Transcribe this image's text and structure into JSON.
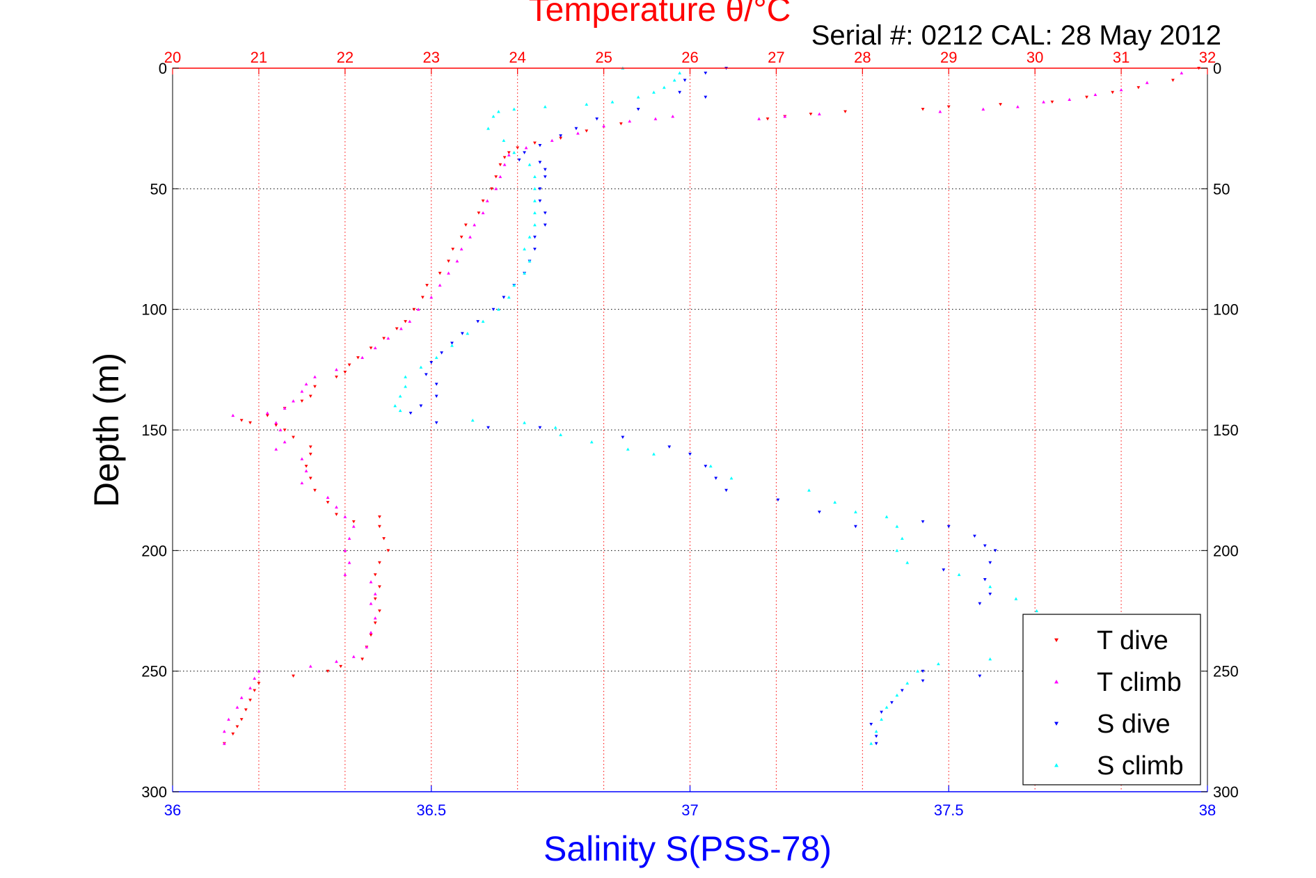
{
  "chart_data": {
    "type": "scatter",
    "title": "Temperature θ/°C",
    "subtitle": "Serial #: 0212  CAL: 28 May 2012",
    "ylabel": "Depth (m)",
    "xlabel_bottom": "Salinity S(PSS-78)",
    "x_top_axis": {
      "label": "Temperature θ/°C",
      "range": [
        20,
        32
      ],
      "ticks": [
        20,
        21,
        22,
        23,
        24,
        25,
        26,
        27,
        28,
        29,
        30,
        31,
        32
      ],
      "color": "#ff0000"
    },
    "x_bottom_axis": {
      "label": "Salinity S(PSS-78)",
      "range": [
        36,
        38
      ],
      "ticks": [
        "36",
        "36.5",
        "37",
        "37.5",
        "38"
      ],
      "tick_values": [
        36,
        36.5,
        37,
        37.5,
        38
      ],
      "color": "#0000ff"
    },
    "y_axis": {
      "label": "Depth (m)",
      "range": [
        0,
        300
      ],
      "reversed": true,
      "ticks": [
        0,
        50,
        100,
        150,
        200,
        250,
        300
      ]
    },
    "grid": true,
    "legend_position": "bottom-right",
    "series": [
      {
        "name": "T dive",
        "axis": "temperature",
        "color": "#ff0000",
        "marker": "triangle-down",
        "points": [
          [
            31.9,
            0
          ],
          [
            31.6,
            5
          ],
          [
            31.2,
            8
          ],
          [
            30.9,
            10
          ],
          [
            30.6,
            12
          ],
          [
            30.2,
            14
          ],
          [
            29.6,
            15
          ],
          [
            29.0,
            16
          ],
          [
            28.7,
            17
          ],
          [
            27.8,
            18
          ],
          [
            27.4,
            19
          ],
          [
            27.1,
            20
          ],
          [
            26.9,
            21
          ],
          [
            25.2,
            23
          ],
          [
            24.8,
            26
          ],
          [
            24.5,
            29
          ],
          [
            24.2,
            31
          ],
          [
            24.0,
            33
          ],
          [
            23.9,
            35
          ],
          [
            23.85,
            37
          ],
          [
            23.8,
            40
          ],
          [
            23.75,
            45
          ],
          [
            23.7,
            50
          ],
          [
            23.6,
            55
          ],
          [
            23.55,
            60
          ],
          [
            23.4,
            65
          ],
          [
            23.35,
            70
          ],
          [
            23.25,
            75
          ],
          [
            23.2,
            80
          ],
          [
            23.1,
            85
          ],
          [
            22.95,
            90
          ],
          [
            22.9,
            95
          ],
          [
            22.8,
            100
          ],
          [
            22.7,
            105
          ],
          [
            22.6,
            108
          ],
          [
            22.45,
            112
          ],
          [
            22.3,
            116
          ],
          [
            22.15,
            120
          ],
          [
            22.05,
            123
          ],
          [
            22.0,
            126
          ],
          [
            21.9,
            128
          ],
          [
            21.65,
            132
          ],
          [
            21.6,
            136
          ],
          [
            21.5,
            138
          ],
          [
            21.3,
            141
          ],
          [
            21.1,
            144
          ],
          [
            20.8,
            146
          ],
          [
            20.9,
            147
          ],
          [
            21.2,
            148
          ],
          [
            21.3,
            150
          ],
          [
            21.4,
            153
          ],
          [
            21.6,
            157
          ],
          [
            21.6,
            160
          ],
          [
            21.55,
            165
          ],
          [
            21.6,
            170
          ],
          [
            21.65,
            175
          ],
          [
            21.8,
            180
          ],
          [
            21.9,
            185
          ],
          [
            22.1,
            188
          ],
          [
            22.4,
            186
          ],
          [
            22.4,
            190
          ],
          [
            22.45,
            195
          ],
          [
            22.5,
            200
          ],
          [
            22.4,
            205
          ],
          [
            22.35,
            210
          ],
          [
            22.4,
            215
          ],
          [
            22.35,
            220
          ],
          [
            22.4,
            225
          ],
          [
            22.35,
            230
          ],
          [
            22.3,
            235
          ],
          [
            22.25,
            240
          ],
          [
            22.2,
            245
          ],
          [
            21.95,
            248
          ],
          [
            21.8,
            250
          ],
          [
            21.4,
            252
          ],
          [
            21.0,
            255
          ],
          [
            20.95,
            258
          ],
          [
            20.9,
            262
          ],
          [
            20.85,
            266
          ],
          [
            20.8,
            270
          ],
          [
            20.75,
            273
          ],
          [
            20.7,
            276
          ],
          [
            20.6,
            280
          ]
        ]
      },
      {
        "name": "T climb",
        "axis": "temperature",
        "color": "#ff00ff",
        "marker": "triangle-up",
        "points": [
          [
            31.7,
            2
          ],
          [
            31.3,
            6
          ],
          [
            31.0,
            9
          ],
          [
            30.7,
            11
          ],
          [
            30.4,
            13
          ],
          [
            30.1,
            14
          ],
          [
            29.8,
            16
          ],
          [
            29.4,
            17
          ],
          [
            28.9,
            18
          ],
          [
            27.5,
            19
          ],
          [
            27.1,
            20
          ],
          [
            26.8,
            21
          ],
          [
            25.8,
            20
          ],
          [
            25.6,
            21
          ],
          [
            25.3,
            22
          ],
          [
            25.0,
            24
          ],
          [
            24.7,
            27
          ],
          [
            24.4,
            30
          ],
          [
            24.1,
            33
          ],
          [
            23.9,
            36
          ],
          [
            23.85,
            40
          ],
          [
            23.8,
            45
          ],
          [
            23.75,
            50
          ],
          [
            23.65,
            55
          ],
          [
            23.6,
            60
          ],
          [
            23.5,
            65
          ],
          [
            23.45,
            70
          ],
          [
            23.35,
            75
          ],
          [
            23.3,
            80
          ],
          [
            23.2,
            85
          ],
          [
            23.1,
            90
          ],
          [
            23.0,
            95
          ],
          [
            22.85,
            100
          ],
          [
            22.75,
            105
          ],
          [
            22.65,
            108
          ],
          [
            22.5,
            112
          ],
          [
            22.35,
            116
          ],
          [
            22.2,
            120
          ],
          [
            21.9,
            125
          ],
          [
            21.65,
            128
          ],
          [
            21.55,
            131
          ],
          [
            21.5,
            134
          ],
          [
            21.4,
            138
          ],
          [
            21.3,
            141
          ],
          [
            21.1,
            143
          ],
          [
            20.7,
            144
          ],
          [
            21.2,
            147
          ],
          [
            21.25,
            150
          ],
          [
            21.3,
            155
          ],
          [
            21.2,
            158
          ],
          [
            21.5,
            162
          ],
          [
            21.55,
            167
          ],
          [
            21.5,
            172
          ],
          [
            21.8,
            178
          ],
          [
            21.9,
            182
          ],
          [
            22.0,
            186
          ],
          [
            22.1,
            190
          ],
          [
            22.05,
            195
          ],
          [
            22.0,
            200
          ],
          [
            22.05,
            205
          ],
          [
            22.0,
            210
          ],
          [
            22.3,
            213
          ],
          [
            22.35,
            218
          ],
          [
            22.3,
            222
          ],
          [
            22.35,
            228
          ],
          [
            22.3,
            234
          ],
          [
            22.25,
            240
          ],
          [
            22.1,
            244
          ],
          [
            21.9,
            246
          ],
          [
            21.6,
            248
          ],
          [
            21.0,
            250
          ],
          [
            20.95,
            253
          ],
          [
            20.9,
            257
          ],
          [
            20.8,
            261
          ],
          [
            20.75,
            265
          ],
          [
            20.65,
            270
          ],
          [
            20.6,
            275
          ],
          [
            20.6,
            280
          ]
        ]
      },
      {
        "name": "S dive",
        "axis": "salinity",
        "color": "#0000ff",
        "marker": "triangle-down",
        "points": [
          [
            37.07,
            0
          ],
          [
            37.03,
            2
          ],
          [
            36.99,
            5
          ],
          [
            36.98,
            10
          ],
          [
            37.03,
            12
          ],
          [
            36.9,
            17
          ],
          [
            36.82,
            21
          ],
          [
            36.78,
            25
          ],
          [
            36.75,
            28
          ],
          [
            36.71,
            32
          ],
          [
            36.68,
            35
          ],
          [
            36.67,
            38
          ],
          [
            36.71,
            39
          ],
          [
            36.72,
            42
          ],
          [
            36.72,
            45
          ],
          [
            36.71,
            50
          ],
          [
            36.71,
            55
          ],
          [
            36.72,
            60
          ],
          [
            36.72,
            65
          ],
          [
            36.7,
            70
          ],
          [
            36.7,
            75
          ],
          [
            36.69,
            80
          ],
          [
            36.68,
            85
          ],
          [
            36.66,
            90
          ],
          [
            36.64,
            95
          ],
          [
            36.62,
            100
          ],
          [
            36.59,
            105
          ],
          [
            36.56,
            110
          ],
          [
            36.54,
            114
          ],
          [
            36.52,
            118
          ],
          [
            36.5,
            122
          ],
          [
            36.49,
            127
          ],
          [
            36.51,
            131
          ],
          [
            36.51,
            136
          ],
          [
            36.48,
            140
          ],
          [
            36.46,
            143
          ],
          [
            36.51,
            147
          ],
          [
            36.61,
            149
          ],
          [
            36.71,
            149
          ],
          [
            36.87,
            153
          ],
          [
            36.96,
            157
          ],
          [
            37.0,
            160
          ],
          [
            37.03,
            165
          ],
          [
            37.05,
            170
          ],
          [
            37.07,
            175
          ],
          [
            37.17,
            179
          ],
          [
            37.25,
            184
          ],
          [
            37.32,
            190
          ],
          [
            37.45,
            188
          ],
          [
            37.5,
            190
          ],
          [
            37.55,
            194
          ],
          [
            37.57,
            198
          ],
          [
            37.59,
            200
          ],
          [
            37.58,
            205
          ],
          [
            37.49,
            208
          ],
          [
            37.57,
            212
          ],
          [
            37.58,
            218
          ],
          [
            37.56,
            222
          ],
          [
            37.45,
            250
          ],
          [
            37.56,
            252
          ],
          [
            37.45,
            254
          ],
          [
            37.41,
            258
          ],
          [
            37.39,
            263
          ],
          [
            37.37,
            267
          ],
          [
            37.35,
            272
          ],
          [
            37.36,
            277
          ],
          [
            37.36,
            280
          ]
        ]
      },
      {
        "name": "S climb",
        "axis": "salinity",
        "color": "#00ffff",
        "marker": "triangle-up",
        "points": [
          [
            36.87,
            0
          ],
          [
            36.98,
            2
          ],
          [
            36.97,
            5
          ],
          [
            36.95,
            8
          ],
          [
            36.93,
            10
          ],
          [
            36.9,
            12
          ],
          [
            36.85,
            14
          ],
          [
            36.8,
            15
          ],
          [
            36.72,
            16
          ],
          [
            36.66,
            17
          ],
          [
            36.63,
            18
          ],
          [
            36.62,
            20
          ],
          [
            36.61,
            25
          ],
          [
            36.64,
            30
          ],
          [
            36.66,
            35
          ],
          [
            36.69,
            40
          ],
          [
            36.7,
            45
          ],
          [
            36.7,
            50
          ],
          [
            36.7,
            55
          ],
          [
            36.7,
            60
          ],
          [
            36.7,
            65
          ],
          [
            36.69,
            70
          ],
          [
            36.68,
            75
          ],
          [
            36.69,
            80
          ],
          [
            36.68,
            85
          ],
          [
            36.66,
            90
          ],
          [
            36.65,
            95
          ],
          [
            36.63,
            100
          ],
          [
            36.6,
            105
          ],
          [
            36.57,
            110
          ],
          [
            36.54,
            115
          ],
          [
            36.51,
            120
          ],
          [
            36.48,
            124
          ],
          [
            36.45,
            128
          ],
          [
            36.45,
            132
          ],
          [
            36.44,
            136
          ],
          [
            36.43,
            140
          ],
          [
            36.44,
            142
          ],
          [
            36.58,
            146
          ],
          [
            36.68,
            147
          ],
          [
            36.74,
            149
          ],
          [
            36.75,
            152
          ],
          [
            36.81,
            155
          ],
          [
            36.88,
            158
          ],
          [
            36.93,
            160
          ],
          [
            37.04,
            165
          ],
          [
            37.08,
            170
          ],
          [
            37.23,
            175
          ],
          [
            37.28,
            180
          ],
          [
            37.32,
            184
          ],
          [
            37.38,
            186
          ],
          [
            37.4,
            190
          ],
          [
            37.41,
            195
          ],
          [
            37.4,
            200
          ],
          [
            37.42,
            205
          ],
          [
            37.52,
            210
          ],
          [
            37.58,
            215
          ],
          [
            37.63,
            220
          ],
          [
            37.67,
            225
          ],
          [
            37.58,
            245
          ],
          [
            37.48,
            247
          ],
          [
            37.44,
            250
          ],
          [
            37.42,
            255
          ],
          [
            37.4,
            260
          ],
          [
            37.38,
            265
          ],
          [
            37.37,
            270
          ],
          [
            37.36,
            275
          ],
          [
            37.35,
            280
          ]
        ]
      }
    ]
  }
}
